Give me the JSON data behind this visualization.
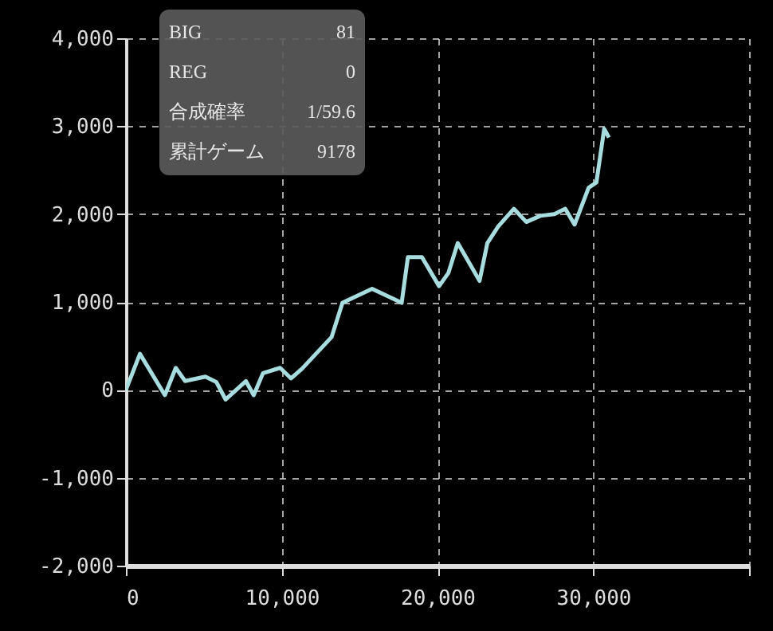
{
  "chart_data": {
    "type": "line",
    "x": [
      0,
      900,
      2500,
      3200,
      3800,
      5100,
      5800,
      6400,
      7700,
      8200,
      8800,
      9900,
      10600,
      11300,
      13200,
      13900,
      15800,
      17700,
      18100,
      19000,
      20100,
      20700,
      21300,
      22700,
      23200,
      23900,
      24900,
      25700,
      26600,
      27500,
      28200,
      28800,
      29700,
      30200,
      30700,
      31000
    ],
    "series": [
      {
        "color": "#a8dde0",
        "values": [
          0,
          410,
          -60,
          250,
          100,
          150,
          90,
          -110,
          100,
          -60,
          190,
          250,
          130,
          240,
          600,
          990,
          1150,
          990,
          1510,
          1510,
          1180,
          1330,
          1670,
          1240,
          1670,
          1860,
          2060,
          1910,
          1980,
          2000,
          2060,
          1880,
          2300,
          2360,
          2970,
          2870
        ]
      }
    ],
    "xlim": [
      0,
      40000
    ],
    "xticks": [
      0,
      {
        "value": 10000,
        "label": "10,000"
      },
      {
        "value": 20000,
        "label": "20,000"
      },
      {
        "value": 30000,
        "label": "30,000"
      },
      {
        "value": 40000,
        "label": null
      }
    ],
    "ylim": [
      -2000,
      4000
    ],
    "yticks": [
      {
        "value": -2000,
        "label": "-2,000"
      },
      {
        "value": -1000,
        "label": "-1,000"
      },
      0,
      {
        "value": 1000,
        "label": "1,000"
      },
      {
        "value": 2000,
        "label": "2,000"
      },
      {
        "value": 3000,
        "label": "3,000"
      },
      {
        "value": 4000,
        "label": "4,000"
      }
    ],
    "grid": true,
    "line_style": "solid",
    "marker": "none",
    "annotations": [
      "BIG",
      "81",
      "REG",
      "0",
      "合成確率",
      "1/59.6",
      "累計ゲーム",
      "9178"
    ]
  }
}
